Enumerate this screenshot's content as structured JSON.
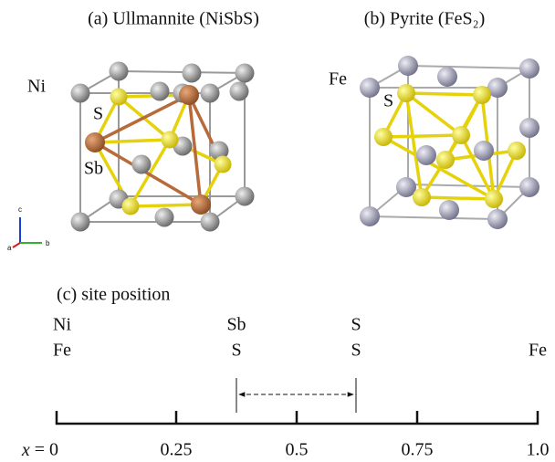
{
  "panels": [
    {
      "label": "(a) Ullmannite (NiSbS)",
      "atoms": [
        "Ni",
        "S",
        "Sb"
      ],
      "axes": [
        "c",
        "a",
        "b"
      ]
    },
    {
      "label": "(b) Pyrite (FeS₂)",
      "atoms": [
        "Fe",
        "S"
      ]
    }
  ],
  "site_panel": {
    "label": "(c) site position",
    "row1": [
      "Ni",
      "Sb",
      "S"
    ],
    "row2": [
      "Fe",
      "S",
      "S",
      "Fe"
    ],
    "ticks": [
      "x = 0",
      "0.25",
      "0.5",
      "0.75",
      "1.0"
    ]
  }
}
